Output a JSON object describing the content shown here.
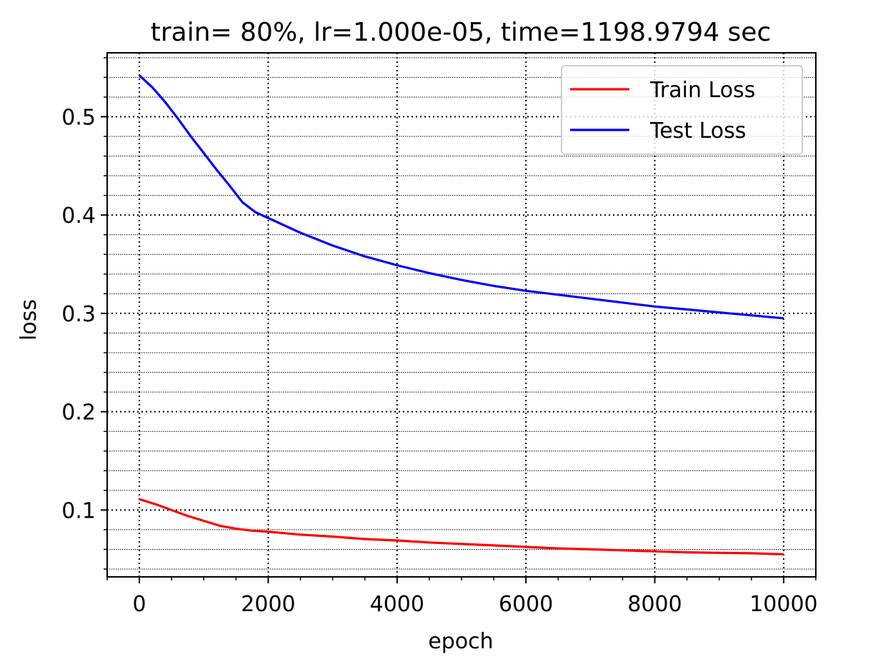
{
  "chart_data": {
    "type": "line",
    "title": "train= 80%, lr=1.000e-05, time=1198.9794 sec",
    "xlabel": "epoch",
    "ylabel": "loss",
    "xlim": [
      -500,
      10500
    ],
    "ylim": [
      0.032,
      0.565
    ],
    "xticks": [
      0,
      2000,
      4000,
      6000,
      8000,
      10000
    ],
    "xtick_labels": [
      "0",
      "2000",
      "4000",
      "6000",
      "8000",
      "10000"
    ],
    "xminor_step": 500,
    "yticks": [
      0.1,
      0.2,
      0.3,
      0.4,
      0.5
    ],
    "ytick_labels": [
      "0.1",
      "0.2",
      "0.3",
      "0.4",
      "0.5"
    ],
    "yminor_step": 0.02,
    "grid": true,
    "legend_position": "upper right",
    "series": [
      {
        "name": "Train Loss",
        "color": "#ff0000",
        "x": [
          0,
          250,
          500,
          750,
          1000,
          1250,
          1500,
          1750,
          2000,
          2500,
          3000,
          3500,
          4000,
          4500,
          5000,
          5500,
          6000,
          6500,
          7000,
          7500,
          8000,
          8500,
          9000,
          9500,
          10000
        ],
        "y": [
          0.111,
          0.106,
          0.1,
          0.094,
          0.089,
          0.084,
          0.081,
          0.079,
          0.078,
          0.075,
          0.073,
          0.0705,
          0.069,
          0.067,
          0.0655,
          0.064,
          0.0625,
          0.061,
          0.06,
          0.059,
          0.058,
          0.057,
          0.0565,
          0.056,
          0.055
        ]
      },
      {
        "name": "Test Loss",
        "color": "#0000ff",
        "x": [
          0,
          200,
          400,
          600,
          800,
          1000,
          1200,
          1400,
          1600,
          1800,
          2000,
          2500,
          3000,
          3500,
          4000,
          4500,
          5000,
          5500,
          6000,
          6500,
          7000,
          7500,
          8000,
          8500,
          9000,
          9500,
          10000
        ],
        "y": [
          0.542,
          0.53,
          0.515,
          0.498,
          0.48,
          0.463,
          0.446,
          0.43,
          0.413,
          0.403,
          0.397,
          0.382,
          0.369,
          0.358,
          0.349,
          0.341,
          0.334,
          0.328,
          0.323,
          0.319,
          0.315,
          0.311,
          0.307,
          0.304,
          0.301,
          0.298,
          0.295
        ]
      }
    ]
  }
}
